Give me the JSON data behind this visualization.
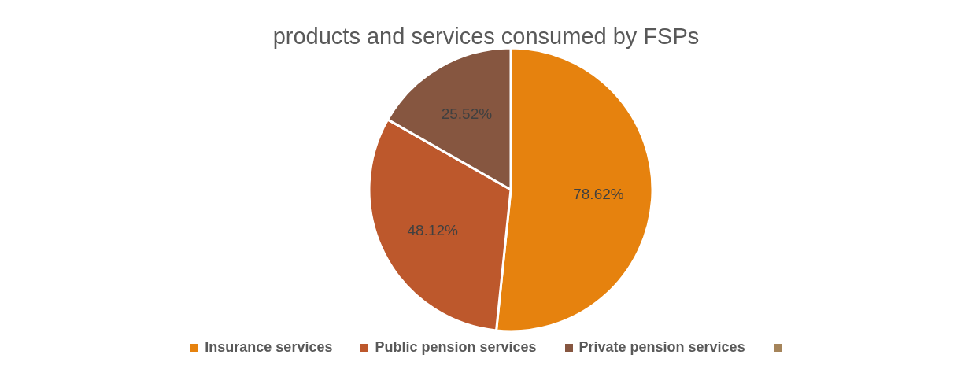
{
  "chart_data": {
    "type": "pie",
    "title": "products and services consumed by FSPs",
    "categories": [
      "Insurance services",
      "Public pension services",
      "Private pension services",
      null
    ],
    "values": [
      78.62,
      48.12,
      25.52,
      0
    ],
    "value_labels": [
      "78.62%",
      "48.12%",
      "25.52%",
      null
    ],
    "colors": [
      "#e6820e",
      "#bd582c",
      "#865640",
      "#a5845a"
    ],
    "legend": "bottom"
  }
}
